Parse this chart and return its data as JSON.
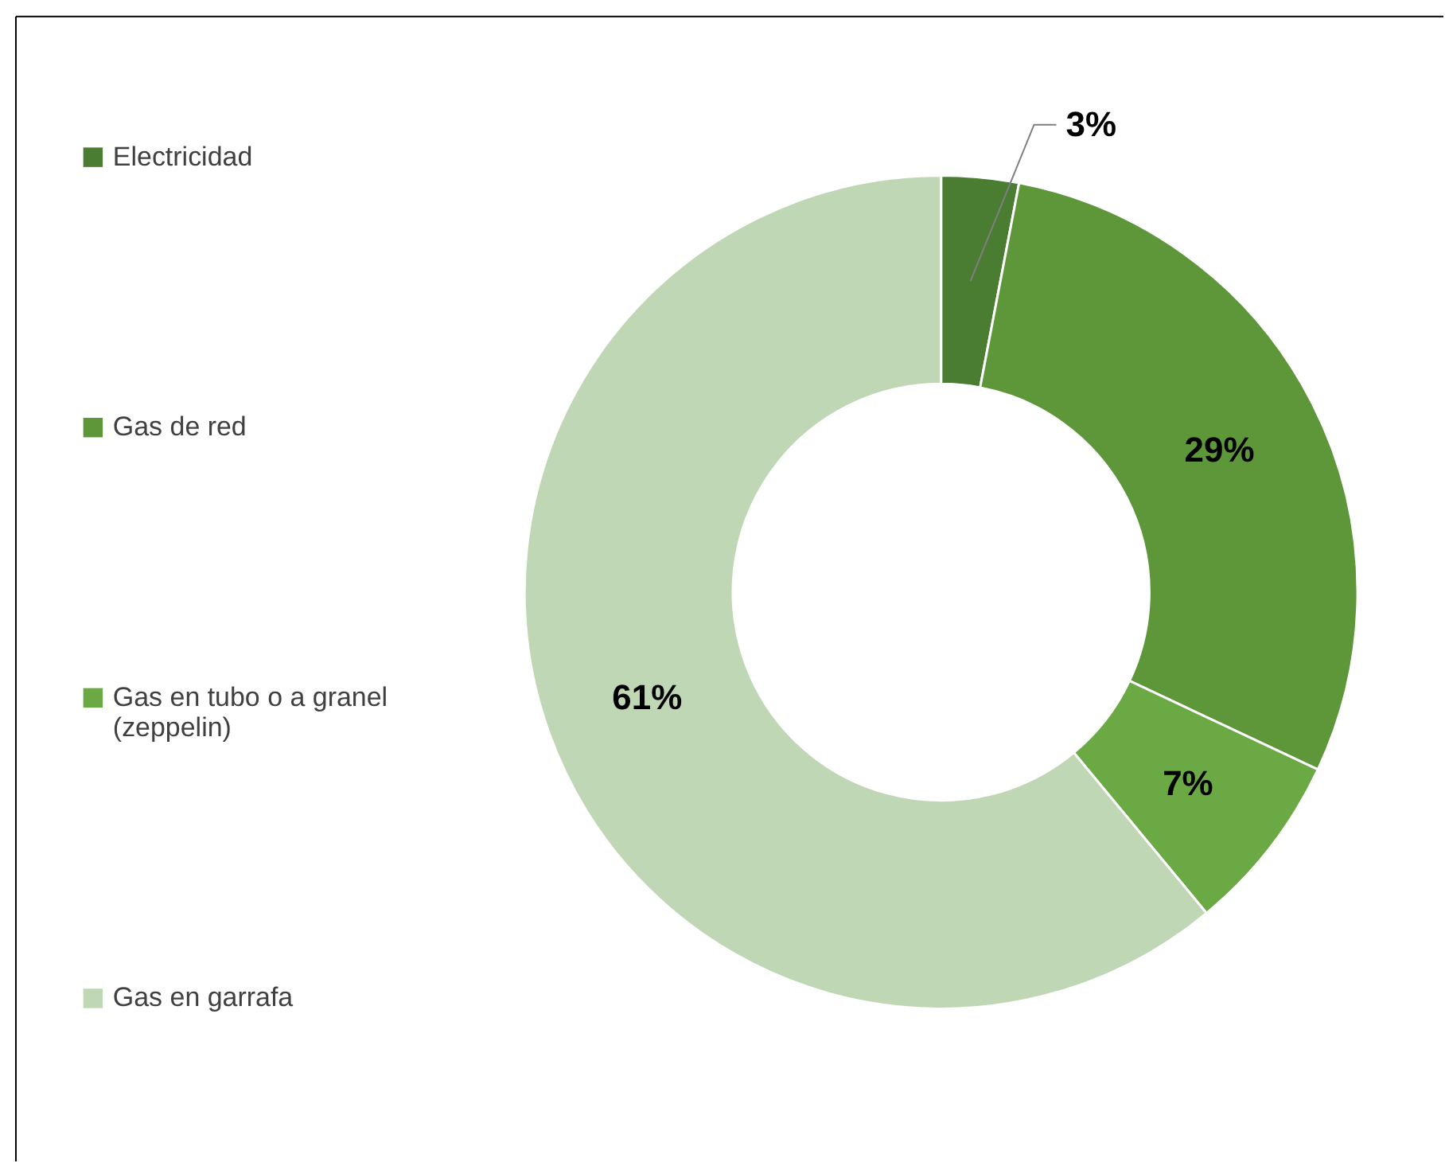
{
  "chart_data": {
    "type": "donut",
    "categories": [
      "Electricidad",
      "Gas de red",
      "Gas en tubo o a granel (zeppelin)",
      "Gas en garrafa"
    ],
    "values": [
      3,
      29,
      7,
      61
    ],
    "colors": [
      "#4a7d32",
      "#5e963a",
      "#6aa944",
      "#bfd7b5"
    ],
    "value_labels": [
      "3%",
      "29%",
      "7%",
      "61%"
    ],
    "legend": "left"
  }
}
